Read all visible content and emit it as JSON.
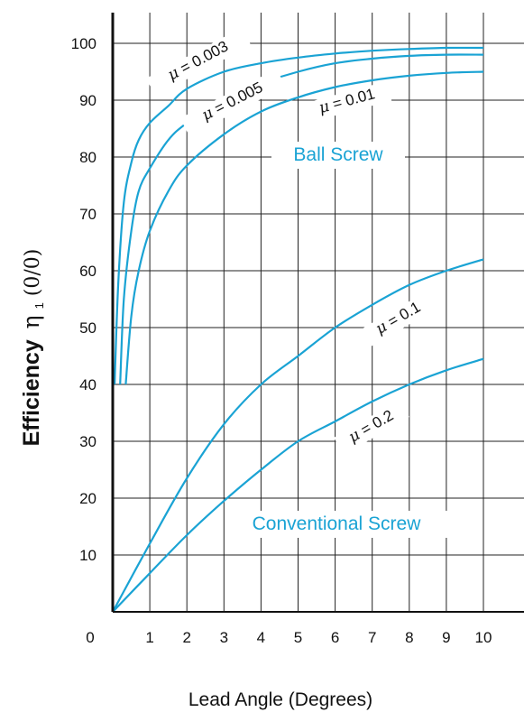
{
  "chart_data": {
    "type": "line",
    "xlabel": "Lead Angle (Degrees)",
    "ylabel": "Efficiency η₁(%)",
    "ylabel_main": "Efficiency",
    "ylabel_symbol": "η",
    "ylabel_sub": "1",
    "ylabel_unit": "(0/0)",
    "xlim": [
      0,
      11
    ],
    "ylim": [
      0,
      100
    ],
    "origin_label": "0",
    "x_ticks": [
      "1",
      "2",
      "3",
      "4",
      "5",
      "6",
      "7",
      "8",
      "9",
      "10"
    ],
    "y_ticks": [
      "10",
      "20",
      "30",
      "40",
      "50",
      "60",
      "70",
      "80",
      "90",
      "100"
    ],
    "grid": true,
    "line_color": "#1aa3d4",
    "annotations": [
      {
        "text": "Ball Screw",
        "color": "#1aa3d4"
      },
      {
        "text": "Conventional Screw",
        "color": "#1aa3d4"
      }
    ],
    "series": [
      {
        "name": "μ = 0.003",
        "label_symbol": "μ",
        "label_value": " = 0.003",
        "x": [
          0.05,
          0.15,
          0.3,
          0.5,
          0.7,
          1.0,
          1.5,
          2.0,
          3.0,
          4.0,
          5.0,
          6.0,
          7.0,
          8.0,
          9.0,
          10.0
        ],
        "y": [
          40,
          58,
          72,
          79,
          83,
          86,
          89,
          92,
          95,
          96.5,
          97.5,
          98.2,
          98.7,
          99.0,
          99.2,
          99.2
        ]
      },
      {
        "name": "μ = 0.005",
        "label_symbol": "μ",
        "label_value": " = 0.005",
        "x": [
          0.2,
          0.3,
          0.5,
          0.7,
          1.0,
          1.5,
          2.0,
          3.0,
          4.0,
          5.0,
          6.0,
          7.0,
          8.0,
          9.0,
          10.0
        ],
        "y": [
          40,
          55,
          67,
          74,
          78,
          83,
          86,
          90.5,
          93,
          95,
          96.5,
          97.3,
          97.8,
          98.0,
          98.0
        ]
      },
      {
        "name": "μ = 0.01",
        "label_symbol": "μ",
        "label_value": " = 0.01",
        "x": [
          0.35,
          0.5,
          0.7,
          1.0,
          1.5,
          2.0,
          3.0,
          4.0,
          5.0,
          6.0,
          7.0,
          8.0,
          9.0,
          10.0
        ],
        "y": [
          40,
          52,
          60,
          67,
          74,
          78.5,
          84,
          88,
          90.5,
          92.3,
          93.5,
          94.3,
          94.8,
          95.0
        ]
      },
      {
        "name": "μ = 0.1",
        "label_symbol": "μ",
        "label_value": " = 0.1",
        "x": [
          0,
          1,
          2,
          3,
          4,
          5,
          6,
          7,
          8,
          9,
          10
        ],
        "y": [
          0,
          12,
          23.5,
          33,
          40,
          45,
          50,
          54,
          57.5,
          60,
          62
        ]
      },
      {
        "name": "μ = 0.2",
        "label_symbol": "μ",
        "label_value": " = 0.2",
        "x": [
          0,
          1,
          2,
          3,
          4,
          5,
          6,
          7,
          8,
          9,
          10
        ],
        "y": [
          0,
          6.8,
          13.5,
          19.5,
          25,
          30,
          33.5,
          37,
          40,
          42.5,
          44.5
        ]
      }
    ]
  }
}
